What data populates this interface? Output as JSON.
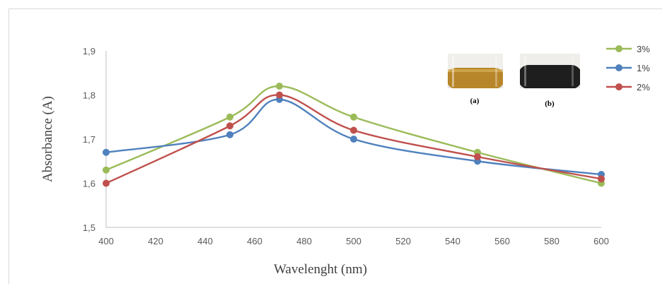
{
  "chart_data": {
    "type": "line",
    "xlabel": "Wavelenght (nm)",
    "ylabel": "Absorbance (A)",
    "xlim": [
      400,
      600
    ],
    "ylim": [
      1.5,
      1.9
    ],
    "xticks": [
      "400",
      "420",
      "440",
      "460",
      "480",
      "500",
      "520",
      "540",
      "560",
      "580",
      "600"
    ],
    "yticks": [
      "1,5",
      "1,6",
      "1,7",
      "1,8",
      "1,9"
    ],
    "grid": false,
    "legend_position": "top-right",
    "series": [
      {
        "name": "3%",
        "color": "#9bbb59",
        "x": [
          400,
          450,
          470,
          500,
          550,
          600
        ],
        "y": [
          1.63,
          1.75,
          1.82,
          1.75,
          1.67,
          1.6
        ]
      },
      {
        "name": "1%",
        "color": "#4f81bd",
        "x": [
          400,
          450,
          470,
          500,
          550,
          600
        ],
        "y": [
          1.67,
          1.71,
          1.79,
          1.7,
          1.65,
          1.62
        ]
      },
      {
        "name": "2%",
        "color": "#c0504d",
        "x": [
          400,
          450,
          470,
          500,
          550,
          600
        ],
        "y": [
          1.6,
          1.73,
          1.8,
          1.72,
          1.66,
          1.61
        ]
      }
    ]
  },
  "inset_photos": [
    {
      "caption": "(a)",
      "liquid_color": "#b8862a"
    },
    {
      "caption": "(b)",
      "liquid_color": "#1e1e1e"
    }
  ]
}
